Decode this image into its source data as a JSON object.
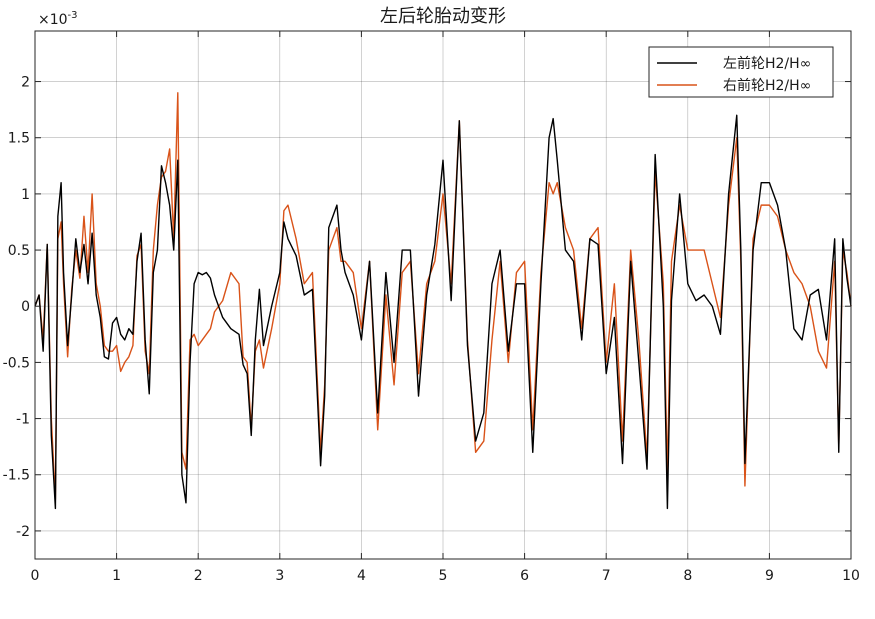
{
  "chart_data": {
    "type": "line",
    "title": "左后轮胎动变形",
    "xlabel": "",
    "ylabel": "",
    "y_multiplier": "×10",
    "y_exponent": "-3",
    "xlim": [
      0,
      10
    ],
    "ylim": [
      -2.25,
      2.45
    ],
    "x_ticks": [
      0,
      1,
      2,
      3,
      4,
      5,
      6,
      7,
      8,
      9,
      10
    ],
    "y_ticks": [
      -2,
      -1.5,
      -1,
      -0.5,
      0,
      0.5,
      1,
      1.5,
      2
    ],
    "grid": true,
    "legend_position": "top-right",
    "colors": {
      "series1": "#000000",
      "series2": "#D95319",
      "grid": "#262626",
      "axis": "#262626"
    },
    "series": [
      {
        "name": "左前轮H2/H∞",
        "x": [
          0,
          0.05,
          0.1,
          0.15,
          0.2,
          0.25,
          0.28,
          0.32,
          0.35,
          0.4,
          0.45,
          0.5,
          0.55,
          0.6,
          0.65,
          0.7,
          0.75,
          0.8,
          0.85,
          0.9,
          0.95,
          1.0,
          1.05,
          1.1,
          1.15,
          1.2,
          1.25,
          1.3,
          1.35,
          1.4,
          1.45,
          1.5,
          1.55,
          1.6,
          1.65,
          1.7,
          1.75,
          1.8,
          1.85,
          1.9,
          1.95,
          2.0,
          2.05,
          2.1,
          2.15,
          2.2,
          2.3,
          2.4,
          2.5,
          2.55,
          2.6,
          2.65,
          2.7,
          2.75,
          2.8,
          2.9,
          3.0,
          3.05,
          3.1,
          3.2,
          3.3,
          3.4,
          3.5,
          3.55,
          3.6,
          3.7,
          3.75,
          3.8,
          3.9,
          4.0,
          4.1,
          4.2,
          4.3,
          4.4,
          4.5,
          4.6,
          4.7,
          4.8,
          4.9,
          5.0,
          5.1,
          5.2,
          5.3,
          5.4,
          5.5,
          5.6,
          5.7,
          5.8,
          5.9,
          6.0,
          6.1,
          6.2,
          6.3,
          6.35,
          6.4,
          6.5,
          6.6,
          6.7,
          6.8,
          6.9,
          7.0,
          7.1,
          7.2,
          7.3,
          7.4,
          7.5,
          7.6,
          7.7,
          7.75,
          7.8,
          7.9,
          8.0,
          8.1,
          8.2,
          8.3,
          8.4,
          8.5,
          8.6,
          8.65,
          8.7,
          8.8,
          8.9,
          9.0,
          9.1,
          9.2,
          9.3,
          9.4,
          9.5,
          9.6,
          9.7,
          9.8,
          9.85,
          9.9,
          9.95,
          10.0
        ],
        "values": [
          0.0,
          0.1,
          -0.4,
          0.55,
          -1.15,
          -1.8,
          0.8,
          1.1,
          0.3,
          -0.35,
          0.1,
          0.6,
          0.3,
          0.55,
          0.2,
          0.65,
          0.1,
          -0.1,
          -0.45,
          -0.47,
          -0.15,
          -0.1,
          -0.25,
          -0.3,
          -0.2,
          -0.25,
          0.4,
          0.65,
          -0.3,
          -0.78,
          0.3,
          0.5,
          1.25,
          1.1,
          0.9,
          0.5,
          1.3,
          -1.5,
          -1.75,
          -0.5,
          0.2,
          0.3,
          0.28,
          0.3,
          0.25,
          0.1,
          -0.1,
          -0.2,
          -0.25,
          -0.52,
          -0.6,
          -1.15,
          -0.3,
          0.15,
          -0.35,
          0.0,
          0.3,
          0.75,
          0.6,
          0.45,
          0.1,
          0.15,
          -1.42,
          -0.8,
          0.7,
          0.9,
          0.5,
          0.3,
          0.1,
          -0.3,
          0.4,
          -0.95,
          0.3,
          -0.5,
          0.5,
          0.5,
          -0.8,
          0.1,
          0.55,
          1.3,
          0.05,
          1.65,
          -0.35,
          -1.2,
          -0.95,
          0.2,
          0.5,
          -0.4,
          0.2,
          0.2,
          -1.3,
          0.2,
          1.5,
          1.67,
          1.3,
          0.5,
          0.4,
          -0.3,
          0.6,
          0.55,
          -0.6,
          -0.1,
          -1.4,
          0.4,
          -0.5,
          -1.45,
          1.35,
          0.0,
          -1.8,
          0.05,
          1.0,
          0.2,
          0.05,
          0.1,
          0.0,
          -0.25,
          1.0,
          1.7,
          0.5,
          -1.4,
          0.5,
          1.1,
          1.1,
          0.9,
          0.5,
          -0.2,
          -0.3,
          0.1,
          0.15,
          -0.3,
          0.6,
          -1.3,
          0.6,
          0.25,
          0.0
        ]
      },
      {
        "name": "右前轮H2/H∞",
        "x": [
          0,
          0.05,
          0.1,
          0.15,
          0.2,
          0.25,
          0.28,
          0.32,
          0.35,
          0.4,
          0.45,
          0.5,
          0.55,
          0.6,
          0.65,
          0.7,
          0.75,
          0.8,
          0.85,
          0.9,
          0.95,
          1.0,
          1.05,
          1.1,
          1.15,
          1.2,
          1.25,
          1.3,
          1.35,
          1.4,
          1.45,
          1.5,
          1.55,
          1.6,
          1.65,
          1.7,
          1.75,
          1.8,
          1.85,
          1.9,
          1.95,
          2.0,
          2.05,
          2.1,
          2.15,
          2.2,
          2.3,
          2.4,
          2.5,
          2.55,
          2.6,
          2.65,
          2.7,
          2.75,
          2.8,
          2.9,
          3.0,
          3.05,
          3.1,
          3.2,
          3.3,
          3.4,
          3.5,
          3.55,
          3.6,
          3.7,
          3.75,
          3.8,
          3.9,
          4.0,
          4.1,
          4.2,
          4.3,
          4.4,
          4.5,
          4.6,
          4.7,
          4.8,
          4.9,
          5.0,
          5.1,
          5.2,
          5.3,
          5.4,
          5.5,
          5.6,
          5.7,
          5.8,
          5.9,
          6.0,
          6.1,
          6.2,
          6.3,
          6.35,
          6.4,
          6.5,
          6.6,
          6.7,
          6.8,
          6.9,
          7.0,
          7.1,
          7.2,
          7.3,
          7.4,
          7.5,
          7.6,
          7.7,
          7.75,
          7.8,
          7.9,
          8.0,
          8.1,
          8.2,
          8.3,
          8.4,
          8.5,
          8.6,
          8.65,
          8.7,
          8.8,
          8.9,
          9.0,
          9.1,
          9.2,
          9.3,
          9.4,
          9.5,
          9.6,
          9.7,
          9.8,
          9.85,
          9.9,
          9.95,
          10.0
        ],
        "values": [
          0.0,
          0.1,
          -0.3,
          0.55,
          -1.0,
          -1.72,
          0.6,
          0.75,
          0.2,
          -0.45,
          0.15,
          0.5,
          0.25,
          0.8,
          0.3,
          1.0,
          0.2,
          0.0,
          -0.35,
          -0.4,
          -0.4,
          -0.35,
          -0.58,
          -0.5,
          -0.45,
          -0.35,
          0.45,
          0.55,
          -0.4,
          -0.6,
          0.5,
          0.9,
          1.15,
          1.2,
          1.4,
          0.6,
          1.9,
          -1.3,
          -1.45,
          -0.3,
          -0.25,
          -0.35,
          -0.3,
          -0.25,
          -0.2,
          -0.05,
          0.05,
          0.3,
          0.2,
          -0.45,
          -0.5,
          -1.08,
          -0.4,
          -0.3,
          -0.55,
          -0.2,
          0.2,
          0.85,
          0.9,
          0.6,
          0.2,
          0.3,
          -1.3,
          -0.7,
          0.5,
          0.7,
          0.4,
          0.4,
          0.3,
          -0.2,
          0.4,
          -1.1,
          0.1,
          -0.7,
          0.3,
          0.4,
          -0.6,
          0.2,
          0.4,
          1.0,
          0.2,
          1.65,
          -0.3,
          -1.3,
          -1.2,
          -0.3,
          0.4,
          -0.5,
          0.3,
          0.4,
          -1.1,
          0.3,
          1.1,
          1.0,
          1.1,
          0.7,
          0.5,
          -0.2,
          0.6,
          0.7,
          -0.5,
          0.2,
          -1.2,
          0.5,
          -0.3,
          -1.35,
          1.2,
          0.2,
          -1.5,
          0.4,
          0.9,
          0.5,
          0.5,
          0.5,
          0.2,
          -0.1,
          0.9,
          1.5,
          0.4,
          -1.6,
          0.6,
          0.9,
          0.9,
          0.8,
          0.5,
          0.3,
          0.2,
          0.0,
          -0.4,
          -0.55,
          0.4,
          -1.25,
          0.5,
          0.3,
          0.0
        ]
      }
    ]
  }
}
